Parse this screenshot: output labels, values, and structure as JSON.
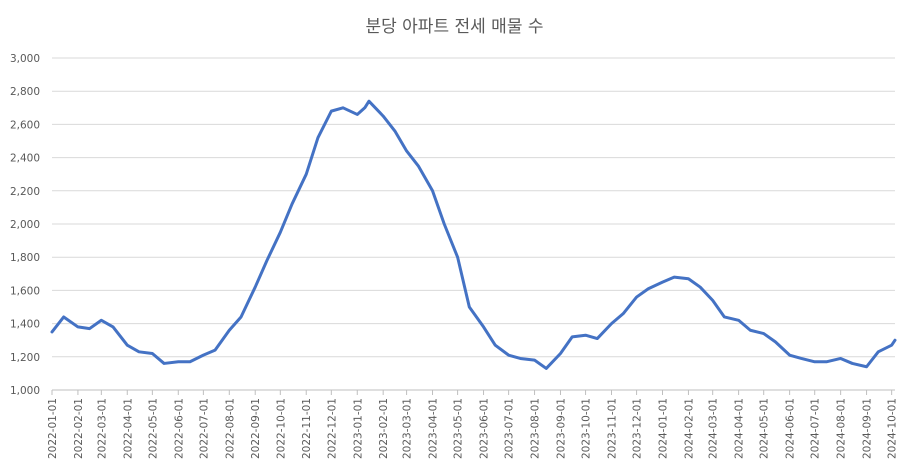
{
  "chart_data": {
    "type": "line",
    "title": "분당 아파트 전세 매물 수",
    "xlabel": "",
    "ylabel": "",
    "ylim": [
      1000,
      3000
    ],
    "yticks": [
      1000,
      1200,
      1400,
      1600,
      1800,
      2000,
      2200,
      2400,
      2600,
      2800,
      3000
    ],
    "ytick_labels": [
      "1,000",
      "1,200",
      "1,400",
      "1,600",
      "1,800",
      "2,000",
      "2,200",
      "2,400",
      "2,600",
      "2,800",
      "3,000"
    ],
    "x_tick_labels": [
      "2022-01-01",
      "2022-02-01",
      "2022-03-01",
      "2022-04-01",
      "2022-05-01",
      "2022-06-01",
      "2022-07-01",
      "2022-08-01",
      "2022-09-01",
      "2022-10-01",
      "2022-11-01",
      "2022-12-01",
      "2023-01-01",
      "2023-02-01",
      "2023-03-01",
      "2023-04-01",
      "2023-05-01",
      "2023-06-01",
      "2023-07-01",
      "2023-08-01",
      "2023-09-01",
      "2023-10-01",
      "2023-11-01",
      "2023-12-01",
      "2024-01-01",
      "2024-02-01",
      "2024-03-01",
      "2024-04-01",
      "2024-05-01",
      "2024-06-01",
      "2024-07-01",
      "2024-08-01",
      "2024-09-01",
      "2024-10-01"
    ],
    "grid": true,
    "color": "#4472C4",
    "series": [
      {
        "x": [
          "2022-01-01",
          "2022-01-15",
          "2022-02-01",
          "2022-02-15",
          "2022-03-01",
          "2022-03-15",
          "2022-04-01",
          "2022-04-15",
          "2022-05-01",
          "2022-05-15",
          "2022-06-01",
          "2022-06-15",
          "2022-07-01",
          "2022-07-15",
          "2022-08-01",
          "2022-08-15",
          "2022-09-01",
          "2022-09-15",
          "2022-10-01",
          "2022-10-15",
          "2022-11-01",
          "2022-11-15",
          "2022-12-01",
          "2022-12-15",
          "2023-01-01",
          "2023-01-10",
          "2023-01-15",
          "2023-02-01",
          "2023-02-15",
          "2023-03-01",
          "2023-03-15",
          "2023-04-01",
          "2023-04-15",
          "2023-05-01",
          "2023-05-15",
          "2023-06-01",
          "2023-06-15",
          "2023-07-01",
          "2023-07-15",
          "2023-08-01",
          "2023-08-15",
          "2023-09-01",
          "2023-09-15",
          "2023-10-01",
          "2023-10-15",
          "2023-11-01",
          "2023-11-15",
          "2023-12-01",
          "2023-12-15",
          "2024-01-01",
          "2024-01-15",
          "2024-02-01",
          "2024-02-15",
          "2024-03-01",
          "2024-03-15",
          "2024-04-01",
          "2024-04-15",
          "2024-05-01",
          "2024-05-15",
          "2024-06-01",
          "2024-06-15",
          "2024-07-01",
          "2024-07-15",
          "2024-08-01",
          "2024-08-15",
          "2024-09-01",
          "2024-09-15",
          "2024-10-01",
          "2024-10-05"
        ],
        "values": [
          1350,
          1440,
          1380,
          1370,
          1420,
          1380,
          1270,
          1230,
          1220,
          1160,
          1170,
          1170,
          1210,
          1240,
          1360,
          1440,
          1620,
          1780,
          1950,
          2120,
          2300,
          2520,
          2680,
          2700,
          2660,
          2700,
          2740,
          2650,
          2560,
          2440,
          2350,
          2200,
          2000,
          1800,
          1500,
          1380,
          1270,
          1210,
          1190,
          1180,
          1130,
          1220,
          1320,
          1330,
          1310,
          1400,
          1460,
          1560,
          1610,
          1650,
          1680,
          1670,
          1620,
          1540,
          1440,
          1420,
          1360,
          1340,
          1290,
          1210,
          1190,
          1170,
          1170,
          1190,
          1160,
          1140,
          1230,
          1270,
          1300
        ]
      }
    ]
  }
}
